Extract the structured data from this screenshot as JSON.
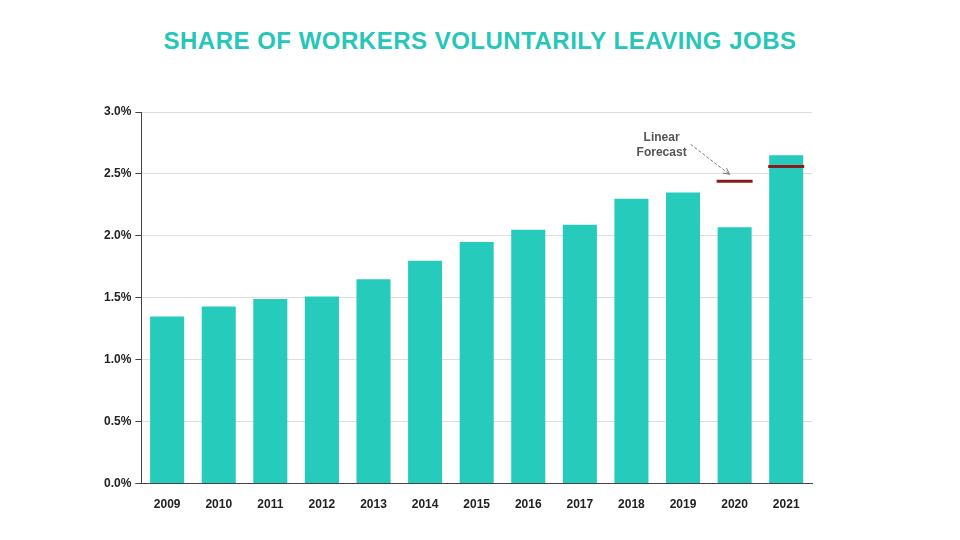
{
  "chart_data": {
    "type": "bar",
    "title": "SHARE OF WORKERS VOLUNTARILY LEAVING JOBS",
    "annotation": "Linear Forecast",
    "categories": [
      "2009",
      "2010",
      "2011",
      "2012",
      "2013",
      "2014",
      "2015",
      "2016",
      "2017",
      "2018",
      "2019",
      "2020",
      "2021"
    ],
    "series": [
      {
        "type": "bar",
        "color": "#26cbbb",
        "values": [
          1.35,
          1.43,
          1.49,
          1.51,
          1.65,
          1.8,
          1.95,
          2.05,
          2.09,
          2.3,
          2.35,
          2.07,
          2.65
        ]
      },
      {
        "type": "line",
        "marker": "line",
        "line_style": "none",
        "color": "#8b1a1a",
        "values": [
          null,
          null,
          null,
          null,
          null,
          null,
          null,
          null,
          null,
          null,
          null,
          2.44,
          2.56
        ]
      }
    ],
    "ylim": [
      0,
      3
    ],
    "yticks": [
      {
        "value": 0,
        "label": "0.0%"
      },
      {
        "value": 0.5,
        "label": "0.5%"
      },
      {
        "value": 1,
        "label": "1.0%"
      },
      {
        "value": 1.5,
        "label": "1.5%"
      },
      {
        "value": 2,
        "label": "2.0%"
      },
      {
        "value": 2.5,
        "label": "2.5%"
      },
      {
        "value": 3,
        "label": "3.0%"
      }
    ],
    "grid": true
  }
}
